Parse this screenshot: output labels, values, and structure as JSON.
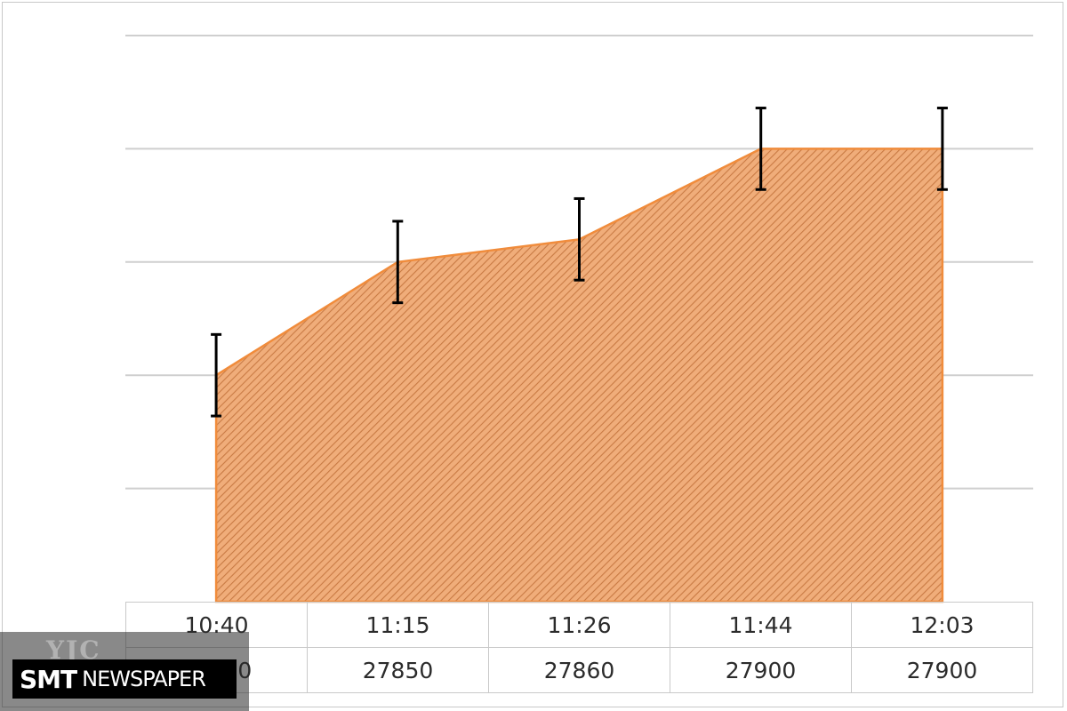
{
  "chart_data": {
    "type": "area",
    "x": [
      "10:40",
      "11:15",
      "11:26",
      "11:44",
      "12:03"
    ],
    "series": [
      {
        "values": [
          27800,
          27850,
          27860,
          27900,
          27900
        ],
        "error": 18
      }
    ],
    "table_rows": [
      [
        "10:40",
        "11:15",
        "11:26",
        "11:44",
        "12:03"
      ],
      [
        "27800",
        "27850",
        "27860",
        "27900",
        "27900"
      ]
    ],
    "ylim": [
      27700,
      27950
    ],
    "ystep": 50,
    "grid": true,
    "colors": {
      "fill": "#f0ad7a",
      "hatch": "#c87a44",
      "edge": "#f08c3c",
      "error": "#000000",
      "grid": "#cfcfcf"
    }
  },
  "watermark": {
    "logo": "YJC",
    "brand_bold": "SMT",
    "brand_rest": "NEWSPAPER"
  }
}
